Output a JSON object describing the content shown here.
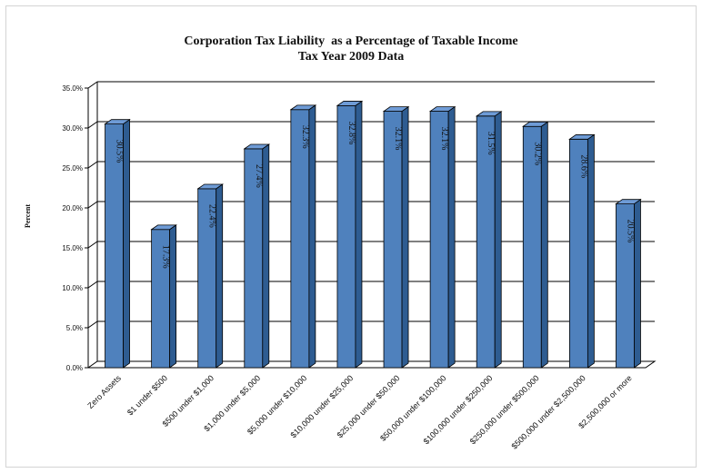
{
  "chart_data": {
    "type": "bar",
    "title": "Corporation Tax Liability  as a Percentage of Taxable Income",
    "subtitle": "Tax Year 2009 Data",
    "ylabel": "Percent",
    "xlabel": "",
    "ylim": [
      0,
      35
    ],
    "yticks": [
      "0.0%",
      "5.0%",
      "10.0%",
      "15.0%",
      "20.0%",
      "25.0%",
      "30.0%",
      "35.0%"
    ],
    "grid": true,
    "legend": "none",
    "bar_color": "#4f81bd",
    "categories": [
      "Zero Assets",
      "$1 under $500",
      "$500 under $1,000",
      "$1,000 under $5,000",
      "$5,000 under $10,000",
      "$10,000 under $25,000",
      "$25,000 under $50,000",
      "$50,000 under $100,000",
      "$100,000 under $250,000",
      "$250,000 under $500,000",
      "$500,000 under $2,500,000",
      "$2,500,000 or more"
    ],
    "values": [
      30.5,
      17.3,
      22.4,
      27.4,
      32.3,
      32.8,
      32.1,
      32.1,
      31.5,
      30.2,
      28.6,
      20.5
    ],
    "labels": [
      "30.5%",
      "17.3%",
      "22.4%",
      "27.4%",
      "32.3%",
      "32.8%",
      "32.1%",
      "32.1%",
      "31.5%",
      "30.2%",
      "28.6%",
      "20.5%"
    ]
  }
}
